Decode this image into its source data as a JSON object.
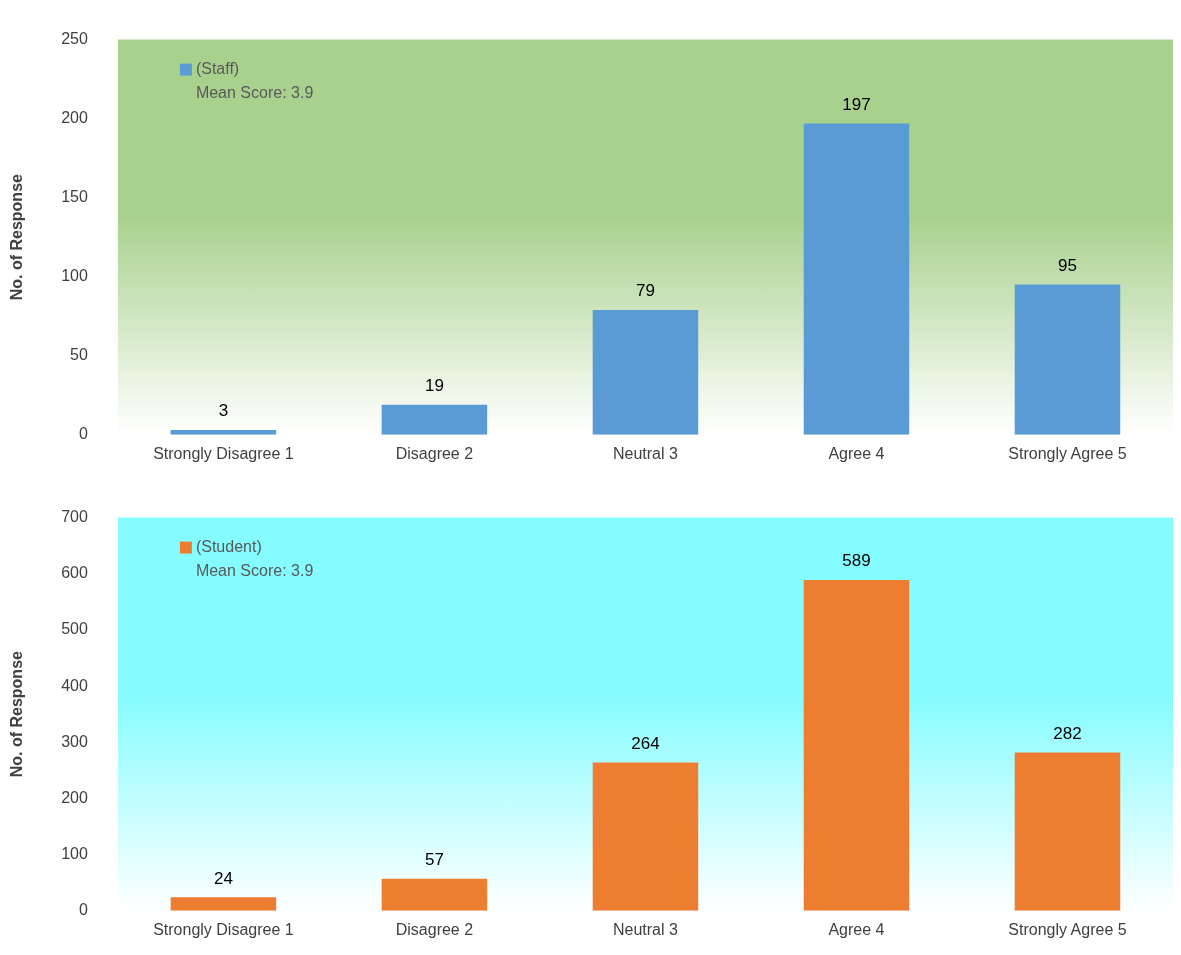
{
  "chart_data": [
    {
      "type": "bar",
      "ylabel": "No. of Response",
      "categories": [
        "Strongly Disagree 1",
        "Disagree 2",
        "Neutral 3",
        "Agree 4",
        "Strongly Agree 5"
      ],
      "series": [
        {
          "name": "(Staff)",
          "color": "#5b9bd5",
          "values": [
            3,
            19,
            79,
            197,
            95
          ]
        }
      ],
      "ylim": [
        0,
        250
      ],
      "yticks": [
        0,
        50,
        100,
        150,
        200,
        250
      ],
      "grid": false,
      "data_labels": true,
      "legend": "top left",
      "annotations": [
        "Mean Score: 3.9"
      ]
    },
    {
      "type": "bar",
      "ylabel": "No. of Response",
      "categories": [
        "Strongly Disagree 1",
        "Disagree 2",
        "Neutral 3",
        "Agree 4",
        "Strongly Agree 5"
      ],
      "series": [
        {
          "name": "(Student)",
          "color": "#ed7d31",
          "values": [
            24,
            57,
            264,
            589,
            282
          ]
        }
      ],
      "ylim": [
        0,
        700
      ],
      "yticks": [
        0,
        100,
        200,
        300,
        400,
        500,
        600,
        700
      ],
      "grid": false,
      "data_labels": true,
      "legend": "top left",
      "annotations": [
        "Mean Score: 3.9"
      ]
    }
  ]
}
